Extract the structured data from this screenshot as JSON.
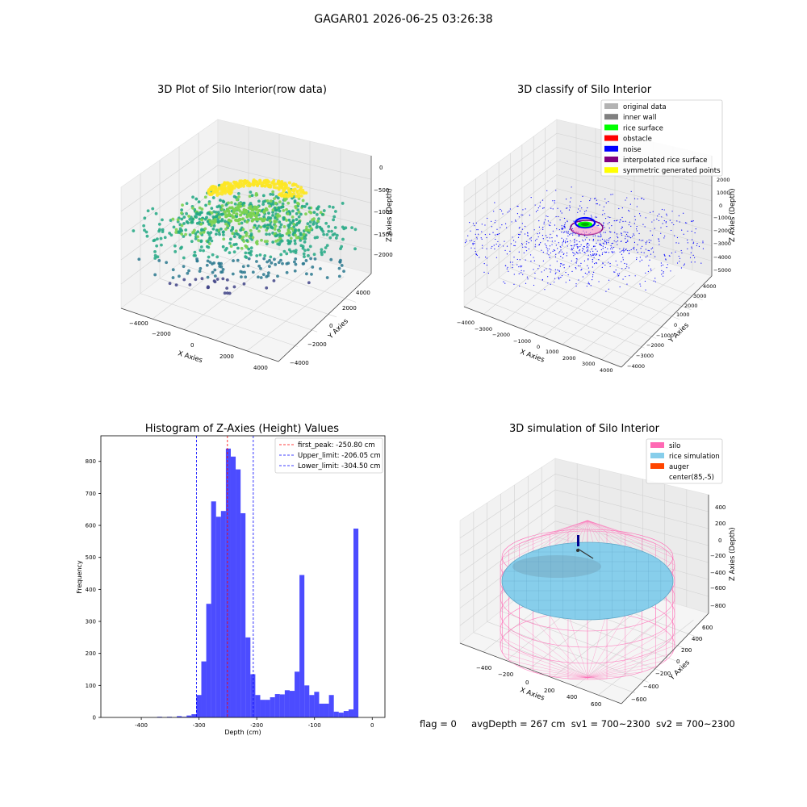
{
  "suptitle": "GAGAR01 2026-06-25 03:26:38",
  "footer": {
    "flag": "flag = 0",
    "avg": "avgDepth = 267 cm",
    "sv1": "sv1 = 700~2300",
    "sv2": "sv2 = 700~2300"
  },
  "chart_data": [
    {
      "type": "scatter",
      "subtype": "3d",
      "title": "3D Plot of Silo Interior(row data)",
      "xlabel": "X Axies",
      "ylabel": "Y Axies",
      "zlabel": "Z Axies (Depth)",
      "x_ticks": [
        "−4000",
        "−2000",
        "0",
        "2000",
        "4000"
      ],
      "y_ticks": [
        "−4000",
        "−2000",
        "0",
        "2000",
        "4000"
      ],
      "z_ticks": [
        "−2000",
        "−1500",
        "−1000",
        "−500",
        "0"
      ],
      "colormap": "viridis",
      "grid": true
    },
    {
      "type": "scatter",
      "subtype": "3d",
      "title": "3D classify of Silo Interior",
      "xlabel": "X Axies",
      "ylabel": "Y Axies",
      "zlabel": "Z Axies (Depth)",
      "x_ticks": [
        "−4000",
        "−3000",
        "−2000",
        "−1000",
        "0",
        "1000",
        "2000",
        "3000",
        "4000"
      ],
      "y_ticks": [
        "−4000",
        "−3000",
        "−2000",
        "−1000",
        "0",
        "1000",
        "2000",
        "3000",
        "4000"
      ],
      "z_ticks": [
        "−5000",
        "−4000",
        "−3000",
        "−2000",
        "−1000",
        "0",
        "1000",
        "2000"
      ],
      "legend": [
        {
          "label": "original data",
          "color": "#b3b3b3"
        },
        {
          "label": "inner wall",
          "color": "#808080"
        },
        {
          "label": "rice surface",
          "color": "#00ff00"
        },
        {
          "label": "obstacle",
          "color": "#ff0000"
        },
        {
          "label": "noise",
          "color": "#0000ff"
        },
        {
          "label": "interpolated rice surface",
          "color": "#800080"
        },
        {
          "label": "symmetric generated points",
          "color": "#ffff00"
        }
      ],
      "legend_position": "top-right",
      "grid": true
    },
    {
      "type": "bar",
      "subtype": "histogram",
      "title": "Histogram of Z-Axies (Height) Values",
      "xlabel": "Depth (cm)",
      "ylabel": "Frequency",
      "xlim": [
        -470,
        22
      ],
      "ylim": [
        0,
        880
      ],
      "x_ticks": [
        -400,
        -300,
        -200,
        -100,
        0
      ],
      "y_ticks": [
        0,
        100,
        200,
        300,
        400,
        500,
        600,
        700,
        800
      ],
      "bin_width": 8.5,
      "bin_starts": [
        -466,
        -457.5,
        -449,
        -440.5,
        -432,
        -423.5,
        -415,
        -406.5,
        -398,
        -389.5,
        -381,
        -372.5,
        -364,
        -355.5,
        -347,
        -338.5,
        -330,
        -321.5,
        -313,
        -304.5,
        -296,
        -287.5,
        -279,
        -270.5,
        -262,
        -253.5,
        -245,
        -236.5,
        -228,
        -219.5,
        -211,
        -202.5,
        -194,
        -185.5,
        -177,
        -168.5,
        -160,
        -151.5,
        -143,
        -134.5,
        -126,
        -117.5,
        -109,
        -100.5,
        -92,
        -83.5,
        -75,
        -66.5,
        -58,
        -49.5,
        -41,
        -32.5,
        -24,
        -15.5,
        -7
      ],
      "values": [
        0,
        0,
        0,
        0,
        0,
        0,
        0,
        0,
        0,
        0,
        0,
        2,
        0,
        2,
        0,
        4,
        2,
        6,
        10,
        70,
        175,
        355,
        675,
        627,
        645,
        840,
        815,
        775,
        638,
        250,
        135,
        70,
        55,
        55,
        63,
        73,
        72,
        85,
        83,
        143,
        445,
        100,
        70,
        80,
        43,
        43,
        70,
        18,
        15,
        20,
        25,
        590,
        0,
        0,
        0
      ],
      "bar_color": "#0000ff",
      "bar_alpha": 0.7,
      "vlines": [
        {
          "label": "first_peak: -250.80 cm",
          "x": -250.8,
          "color": "#ff0000"
        },
        {
          "label": "Upper_limit: -206.05 cm",
          "x": -206.05,
          "color": "#0000ff"
        },
        {
          "label": "Lower_limit: -304.50 cm",
          "x": -304.5,
          "color": "#0000ff"
        }
      ],
      "legend_position": "top-right",
      "grid": false
    },
    {
      "type": "surface",
      "subtype": "3d",
      "title": "3D simulation of Silo Interior",
      "xlabel": "X Axies",
      "ylabel": "Y Axies",
      "zlabel": "Z Axies (Depth)",
      "x_ticks": [
        "−400",
        "−200",
        "0",
        "200",
        "400",
        "600"
      ],
      "y_ticks": [
        "−600",
        "−400",
        "−200",
        "0",
        "200",
        "400",
        "600"
      ],
      "z_ticks": [
        "−800",
        "−600",
        "−400",
        "−200",
        "0",
        "200",
        "400"
      ],
      "legend": [
        {
          "label": "silo",
          "color": "#ff69b4"
        },
        {
          "label": "rice simulation",
          "color": "#87ceeb"
        },
        {
          "label": "auger",
          "color": "#ff4500"
        },
        {
          "label": "center(85,-5)",
          "color": "#ffffff"
        }
      ],
      "legend_position": "top-right",
      "grid": true
    }
  ]
}
